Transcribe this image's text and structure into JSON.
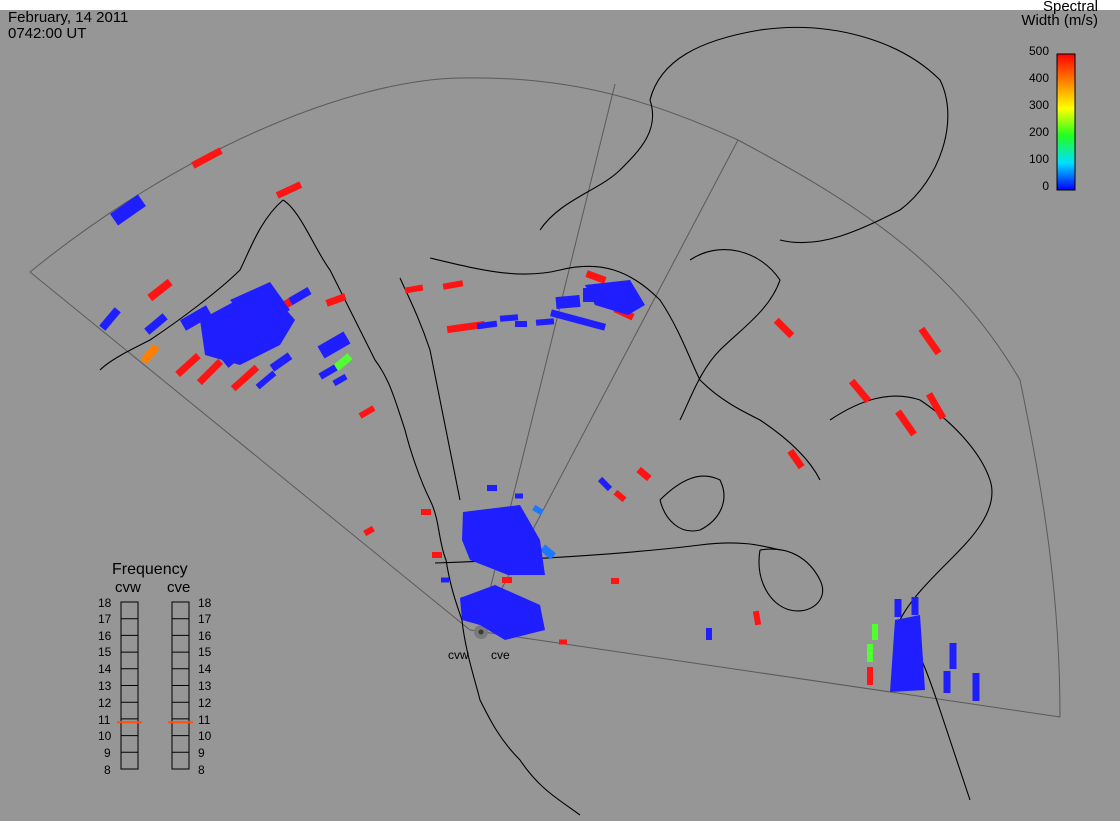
{
  "header": {
    "date": "February, 14 2011",
    "time": "0742:00 UT"
  },
  "colorbar": {
    "title_line1": "Spectral",
    "title_line2": "Width (m/s)",
    "ticks": [
      "500",
      "400",
      "300",
      "200",
      "100",
      "0"
    ],
    "min": 0,
    "max": 500
  },
  "radars": {
    "west": "cvw",
    "east": "cve"
  },
  "frequency": {
    "title": "Frequency",
    "radar_west": "cvw",
    "radar_east": "cve",
    "labels": [
      "18",
      "17",
      "16",
      "15",
      "14",
      "13",
      "12",
      "11",
      "10",
      "9",
      "8"
    ],
    "west_mhz": 10.8,
    "east_mhz": 10.8
  },
  "colors": {
    "background": "#969696",
    "red": "#ff1414",
    "blue": "#1e1eff",
    "orange": "#ff8000",
    "green": "#50ff30",
    "light_blue": "#1e78ff",
    "coast": "#000000",
    "fov": "#5a5a5a",
    "freq_marker": "#ff5010"
  }
}
